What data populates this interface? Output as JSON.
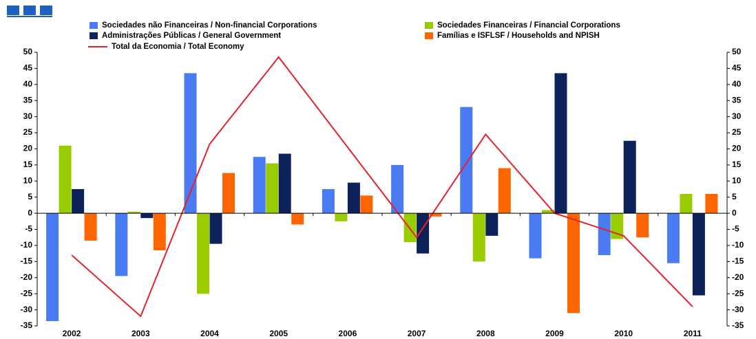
{
  "chart_data": {
    "type": "bar",
    "categories": [
      "2002",
      "2003",
      "2004",
      "2005",
      "2006",
      "2007",
      "2008",
      "2009",
      "2010",
      "2011"
    ],
    "series": [
      {
        "name": "Sociedades não Financeiras / Non-financial Corporations",
        "color": "#4a7bf2",
        "values": [
          -33.5,
          -19.5,
          43.5,
          17.5,
          7.5,
          15,
          33,
          -14,
          -13,
          -15.5
        ]
      },
      {
        "name": "Sociedades Financeiras / Financial Corporations",
        "color": "#99cc00",
        "values": [
          21,
          0.5,
          -25,
          15.5,
          -2.5,
          -9,
          -15,
          1,
          -8,
          6
        ]
      },
      {
        "name": "Administrações Públicas / General Government",
        "color": "#0c2258",
        "values": [
          7.5,
          -1.5,
          -9.5,
          18.5,
          9.5,
          -12.5,
          -7,
          43.5,
          22.5,
          -25.5
        ]
      },
      {
        "name": "Famílias e ISFLSF / Households and NPISH",
        "color": "#ff6600",
        "values": [
          -8.5,
          -11.5,
          12.5,
          -3.5,
          5.5,
          -1,
          14,
          -31,
          -7.5,
          6
        ]
      },
      {
        "name": "Total da Economia / Total Economy",
        "color": "#e8202a",
        "type": "line",
        "values": [
          -13,
          -32,
          21.5,
          48.5,
          20.5,
          -7.5,
          24.5,
          0,
          -7,
          -29
        ]
      }
    ],
    "ylim": [
      -35,
      50
    ],
    "yticks": [
      -35,
      -30,
      -25,
      -20,
      -15,
      -10,
      -5,
      0,
      5,
      10,
      15,
      20,
      25,
      30,
      35,
      40,
      45,
      50
    ]
  }
}
